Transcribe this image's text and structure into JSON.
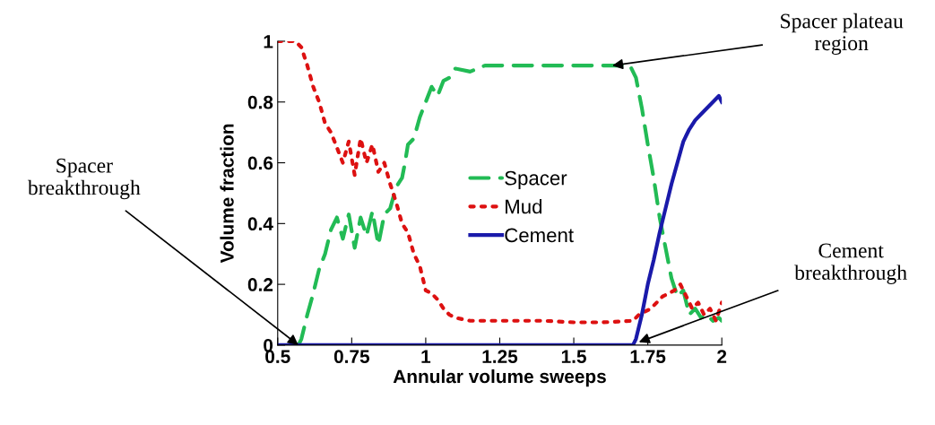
{
  "chart_data": {
    "type": "line",
    "xlabel": "Annular volume sweeps",
    "ylabel": "Volume fraction",
    "xlim": [
      0.5,
      2
    ],
    "ylim": [
      0,
      1
    ],
    "xticks": [
      0.5,
      0.75,
      1,
      1.25,
      1.5,
      1.75,
      2
    ],
    "yticks": [
      0,
      0.2,
      0.4,
      0.6,
      0.8,
      1
    ],
    "grid": false,
    "legend": "center",
    "series": [
      {
        "name": "Spacer",
        "color": "#22bb55",
        "line_style": "dashed",
        "x": [
          0.57,
          0.58,
          0.6,
          0.62,
          0.64,
          0.66,
          0.68,
          0.7,
          0.72,
          0.74,
          0.76,
          0.78,
          0.8,
          0.82,
          0.84,
          0.86,
          0.88,
          0.9,
          0.92,
          0.93,
          0.94,
          0.96,
          0.98,
          1.0,
          1.02,
          1.04,
          1.06,
          1.08,
          1.1,
          1.15,
          1.2,
          1.3,
          1.4,
          1.5,
          1.6,
          1.69,
          1.71,
          1.73,
          1.75,
          1.77,
          1.79,
          1.81,
          1.83,
          1.85,
          1.87,
          1.89,
          1.91,
          1.93,
          1.95,
          1.97,
          1.99,
          2.0
        ],
        "values": [
          0,
          0.02,
          0.1,
          0.17,
          0.25,
          0.3,
          0.38,
          0.42,
          0.35,
          0.43,
          0.32,
          0.42,
          0.36,
          0.44,
          0.33,
          0.43,
          0.45,
          0.52,
          0.55,
          0.6,
          0.66,
          0.68,
          0.75,
          0.8,
          0.85,
          0.82,
          0.87,
          0.88,
          0.91,
          0.9,
          0.92,
          0.92,
          0.92,
          0.92,
          0.92,
          0.92,
          0.88,
          0.78,
          0.66,
          0.55,
          0.42,
          0.32,
          0.22,
          0.16,
          0.18,
          0.1,
          0.12,
          0.09,
          0.1,
          0.08,
          0.09,
          0.08
        ]
      },
      {
        "name": "Mud",
        "color": "#dd1111",
        "line_style": "dotted",
        "x": [
          0.5,
          0.56,
          0.58,
          0.6,
          0.62,
          0.64,
          0.66,
          0.68,
          0.7,
          0.72,
          0.74,
          0.76,
          0.78,
          0.8,
          0.82,
          0.84,
          0.86,
          0.88,
          0.9,
          0.92,
          0.94,
          0.96,
          0.98,
          1.0,
          1.02,
          1.04,
          1.06,
          1.08,
          1.1,
          1.15,
          1.2,
          1.3,
          1.4,
          1.5,
          1.6,
          1.7,
          1.72,
          1.76,
          1.8,
          1.84,
          1.86,
          1.88,
          1.9,
          1.92,
          1.94,
          1.96,
          1.98,
          2.0
        ],
        "values": [
          1,
          1,
          0.98,
          0.92,
          0.85,
          0.8,
          0.73,
          0.7,
          0.65,
          0.6,
          0.67,
          0.56,
          0.68,
          0.6,
          0.66,
          0.57,
          0.6,
          0.53,
          0.47,
          0.4,
          0.37,
          0.3,
          0.26,
          0.18,
          0.17,
          0.15,
          0.12,
          0.1,
          0.09,
          0.08,
          0.08,
          0.08,
          0.08,
          0.075,
          0.075,
          0.08,
          0.1,
          0.12,
          0.16,
          0.18,
          0.2,
          0.16,
          0.12,
          0.14,
          0.1,
          0.12,
          0.08,
          0.14
        ]
      },
      {
        "name": "Cement",
        "color": "#1a1aaa",
        "line_style": "solid",
        "x": [
          0.5,
          1.7,
          1.71,
          1.73,
          1.75,
          1.77,
          1.79,
          1.81,
          1.83,
          1.85,
          1.87,
          1.89,
          1.91,
          1.93,
          1.95,
          1.97,
          1.99,
          2.0
        ],
        "values": [
          0,
          0,
          0.02,
          0.1,
          0.2,
          0.28,
          0.37,
          0.45,
          0.53,
          0.6,
          0.67,
          0.71,
          0.74,
          0.76,
          0.78,
          0.8,
          0.82,
          0.8
        ]
      }
    ],
    "annotations": [
      {
        "text": "Spacer\nbreakthrough",
        "x": 0.57,
        "y": 0
      },
      {
        "text": "Spacer plateau\nregion",
        "x": 1.63,
        "y": 0.92
      },
      {
        "text": "Cement\nbreakthrough",
        "x": 1.72,
        "y": 0.01
      }
    ]
  }
}
